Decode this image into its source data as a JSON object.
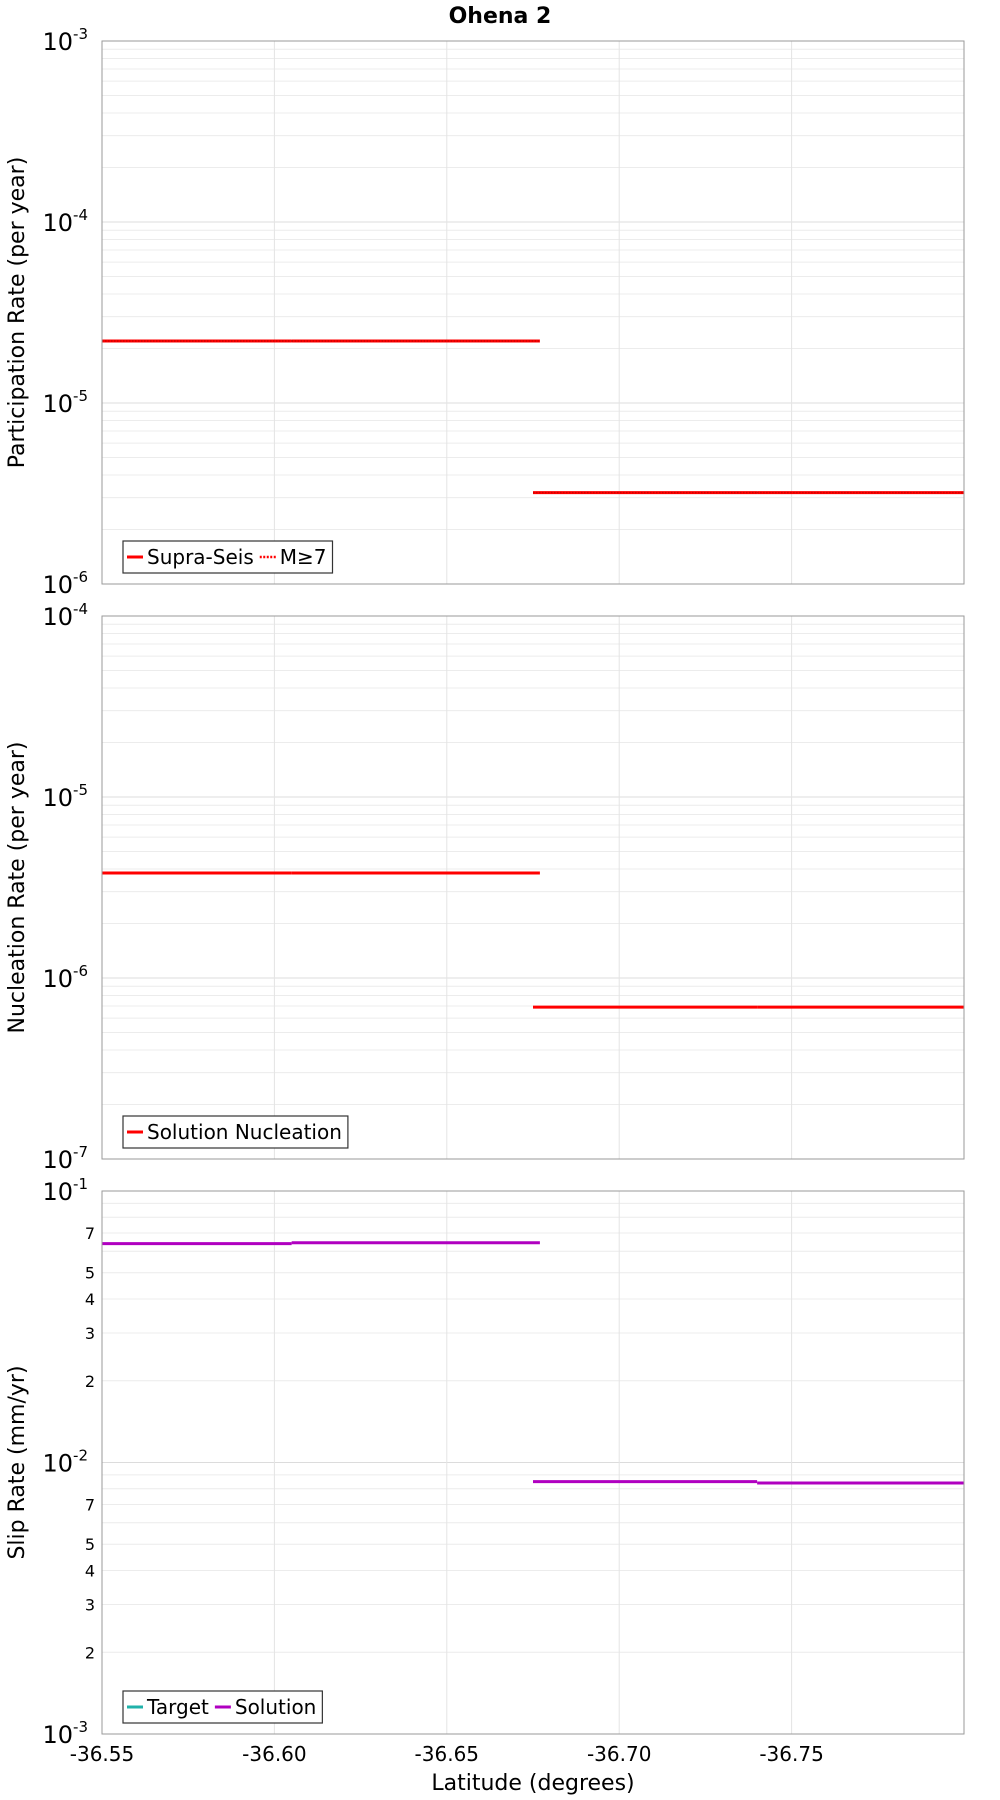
{
  "figure_title": "Ohena 2",
  "xlabel": "Latitude (degrees)",
  "chart_data": [
    {
      "type": "line",
      "id": "participation",
      "ylabel": "Participation Rate (per year)",
      "yscale": "log",
      "ylim_exp": [
        -6,
        -3
      ],
      "xlim": [
        -36.55,
        -36.8
      ],
      "x_ticks": [
        "-36.55",
        "-36.60",
        "-36.65",
        "-36.70",
        "-36.75"
      ],
      "x_tick_values": [
        -36.55,
        -36.6,
        -36.65,
        -36.7,
        -36.75
      ],
      "show_x_tick_labels": false,
      "y_tick_base": "10",
      "y_tick_exps": [
        "-6",
        "-5",
        "-4",
        "-3"
      ],
      "legend": [
        {
          "label": "Supra-Seis",
          "color": "#ff0000",
          "style": "solid"
        },
        {
          "label": "M≥7",
          "color": "#ff0000",
          "style": "dotted"
        }
      ],
      "series": [
        {
          "name": "Supra-Seis",
          "color": "#ff0000",
          "style": "solid",
          "segments": [
            [
              -36.55,
              -36.605,
              2.2e-05
            ],
            [
              -36.605,
              -36.677,
              2.2e-05
            ],
            [
              -36.675,
              -36.74,
              3.2e-06
            ],
            [
              -36.74,
              -36.8,
              3.2e-06
            ]
          ]
        },
        {
          "name": "M≥7",
          "color": "#ff0000",
          "style": "dotted",
          "segments": [
            [
              -36.55,
              -36.605,
              2.2e-05
            ],
            [
              -36.605,
              -36.677,
              2.2e-05
            ],
            [
              -36.675,
              -36.74,
              3.2e-06
            ],
            [
              -36.74,
              -36.8,
              3.2e-06
            ]
          ]
        }
      ]
    },
    {
      "type": "line",
      "id": "nucleation",
      "ylabel": "Nucleation Rate (per year)",
      "yscale": "log",
      "ylim_exp": [
        -7,
        -4
      ],
      "xlim": [
        -36.55,
        -36.8
      ],
      "x_ticks": [
        "-36.55",
        "-36.60",
        "-36.65",
        "-36.70",
        "-36.75"
      ],
      "x_tick_values": [
        -36.55,
        -36.6,
        -36.65,
        -36.7,
        -36.75
      ],
      "show_x_tick_labels": false,
      "y_tick_base": "10",
      "y_tick_exps": [
        "-7",
        "-6",
        "-5",
        "-4"
      ],
      "legend": [
        {
          "label": "Solution Nucleation",
          "color": "#ff0000",
          "style": "solid"
        }
      ],
      "series": [
        {
          "name": "Solution Nucleation",
          "color": "#ff0000",
          "style": "solid",
          "segments": [
            [
              -36.55,
              -36.605,
              3.8e-06
            ],
            [
              -36.605,
              -36.677,
              3.8e-06
            ],
            [
              -36.675,
              -36.74,
              6.9e-07
            ],
            [
              -36.74,
              -36.8,
              6.9e-07
            ]
          ]
        }
      ]
    },
    {
      "type": "line",
      "id": "slip",
      "ylabel": "Slip Rate (mm/yr)",
      "yscale": "log",
      "ylim_exp": [
        -3,
        -1
      ],
      "xlim": [
        -36.55,
        -36.8
      ],
      "x_ticks": [
        "-36.55",
        "-36.60",
        "-36.65",
        "-36.70",
        "-36.75"
      ],
      "x_tick_values": [
        -36.55,
        -36.6,
        -36.65,
        -36.7,
        -36.75
      ],
      "show_x_tick_labels": true,
      "y_tick_base": "10",
      "y_tick_exps": [
        "-3",
        "-2",
        "-1"
      ],
      "minor_tick_labels": [
        "2",
        "3",
        "4",
        "5",
        "7"
      ],
      "legend": [
        {
          "label": "Target",
          "color": "#20b2aa",
          "style": "solid"
        },
        {
          "label": "Solution",
          "color": "#b000c0",
          "style": "solid"
        }
      ],
      "series": [
        {
          "name": "Solution",
          "color": "#b000c0",
          "style": "solid",
          "segments": [
            [
              -36.55,
              -36.605,
              0.064
            ],
            [
              -36.605,
              -36.677,
              0.0645
            ],
            [
              -36.675,
              -36.74,
              0.0085
            ],
            [
              -36.74,
              -36.8,
              0.0084
            ]
          ]
        }
      ]
    }
  ]
}
